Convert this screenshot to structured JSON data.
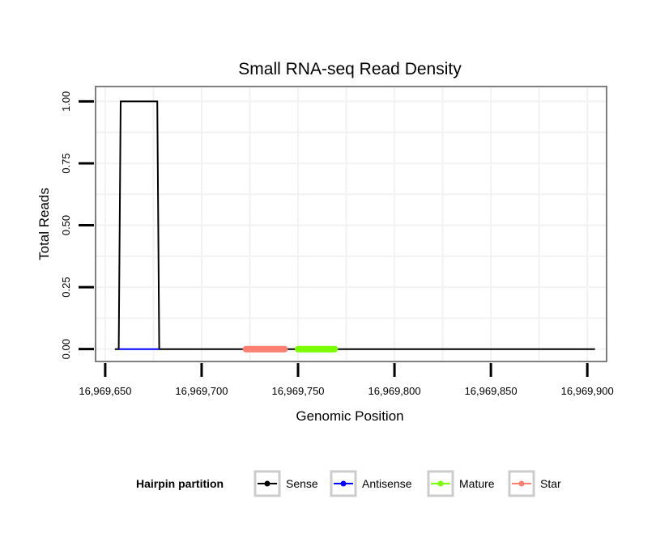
{
  "chart_data": {
    "type": "line",
    "title": "Small RNA-seq Read Density",
    "xlabel": "Genomic Position",
    "ylabel": "Total Reads",
    "xlim": [
      16969645,
      16969910
    ],
    "ylim": [
      -0.05,
      1.06
    ],
    "x_ticks": [
      16969650,
      16969700,
      16969750,
      16969800,
      16969850,
      16969900
    ],
    "x_tick_labels": [
      "16,969,650",
      "16,969,700",
      "16,969,750",
      "16,969,800",
      "16,969,850",
      "16,969,900"
    ],
    "y_ticks": [
      0,
      0.25,
      0.5,
      0.75,
      1.0
    ],
    "y_tick_labels": [
      "0.00",
      "0.25",
      "0.50",
      "0.75",
      "1.00"
    ],
    "grid": true,
    "legend": {
      "title": "Hairpin partition",
      "position": "bottom",
      "entries": [
        "Sense",
        "Antisense",
        "Mature",
        "Star"
      ]
    },
    "series": [
      {
        "name": "Sense",
        "color": "#000000",
        "x": [
          16969655,
          16969657,
          16969658,
          16969677,
          16969678,
          16969904
        ],
        "y": [
          0,
          0,
          1,
          1,
          0,
          0
        ]
      },
      {
        "name": "Antisense",
        "color": "#0000ff",
        "x": [
          16969657,
          16969678
        ],
        "y": [
          0,
          0
        ]
      },
      {
        "name": "Mature",
        "color": "#7cfc00",
        "x": [
          16969750,
          16969769
        ],
        "y": [
          0,
          0
        ]
      },
      {
        "name": "Star",
        "color": "#fa8072",
        "x": [
          16969723,
          16969743
        ],
        "y": [
          0,
          0
        ]
      }
    ]
  }
}
